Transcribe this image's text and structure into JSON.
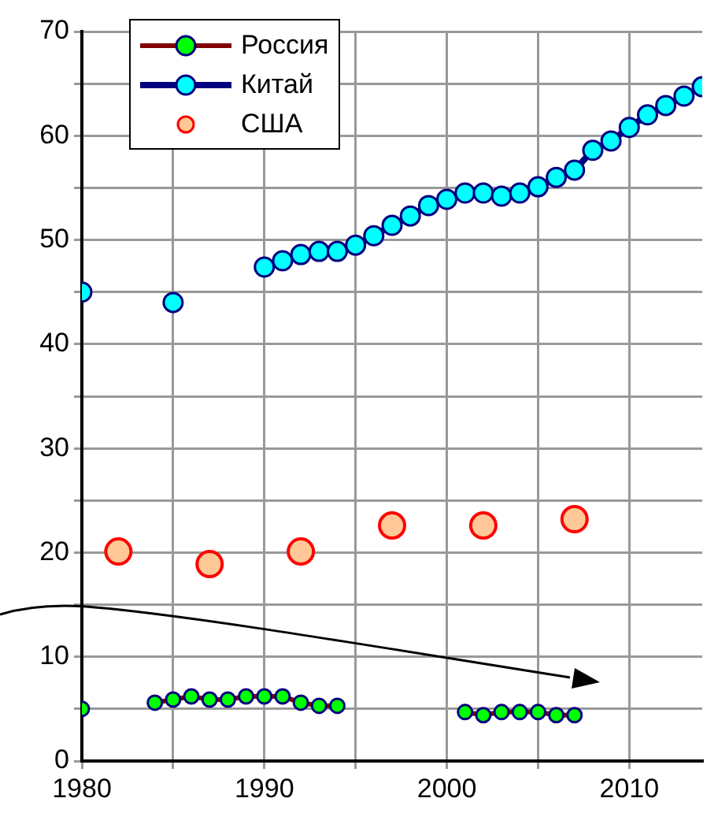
{
  "chart_data": {
    "type": "line",
    "xlim": [
      1980,
      2014
    ],
    "xticks": [
      1980,
      {
        "value": 1985,
        "label": null
      },
      1990,
      {
        "value": 1995,
        "label": null
      },
      2000,
      {
        "value": 2005,
        "label": null
      },
      2010
    ],
    "ylim": [
      0,
      70
    ],
    "yticks": [
      0,
      {
        "value": 5,
        "label": null
      },
      10,
      {
        "value": 15,
        "label": null
      },
      20,
      {
        "value": 25,
        "label": null
      },
      30,
      {
        "value": 35,
        "label": null
      },
      40,
      {
        "value": 45,
        "label": null
      },
      50,
      {
        "value": 55,
        "label": null
      },
      60,
      {
        "value": 65,
        "label": null
      },
      70
    ],
    "grid": true,
    "legend": "top left",
    "marker": "circle",
    "series": [
      {
        "name": "Россия",
        "color": "#00ff00",
        "x": [
          1980,
          1981,
          1984,
          1985,
          1986,
          1987,
          1988,
          1989,
          1990,
          1991,
          1992,
          1993,
          1994,
          1995,
          2001,
          2002,
          2003,
          2004,
          2005,
          2006,
          2007
        ],
        "values": [
          5,
          null,
          5.6,
          5.9,
          6.2,
          5.9,
          5.9,
          6.2,
          6.2,
          6.2,
          5.6,
          5.3,
          5.3,
          null,
          4.7,
          4.4,
          4.7,
          4.7,
          4.7,
          4.4,
          4.4
        ]
      },
      {
        "name": "Китай",
        "color": "#00ffff",
        "x": [
          1980,
          1981,
          1985,
          1986,
          1990,
          1991,
          1992,
          1993,
          1994,
          1995,
          1996,
          1997,
          1998,
          1999,
          2000,
          2001,
          2002,
          2003,
          2004,
          2005,
          2006,
          2007,
          2008,
          2009,
          2010,
          2011,
          2012,
          2013,
          2014
        ],
        "values": [
          45,
          null,
          44,
          null,
          47.4,
          48,
          48.6,
          48.9,
          48.9,
          49.5,
          50.4,
          51.4,
          52.3,
          53.3,
          53.9,
          54.5,
          54.5,
          54.2,
          54.5,
          55.1,
          56,
          56.7,
          58.6,
          59.5,
          60.8,
          62,
          62.9,
          63.8,
          64.7
        ]
      },
      {
        "name": "США",
        "type": "scatter",
        "color": "#ffc896",
        "x": [
          1982,
          1987,
          1992,
          1997,
          2002,
          2007
        ],
        "values": [
          20.1,
          18.9,
          20.1,
          22.6,
          22.6,
          23.2
        ]
      }
    ]
  }
}
